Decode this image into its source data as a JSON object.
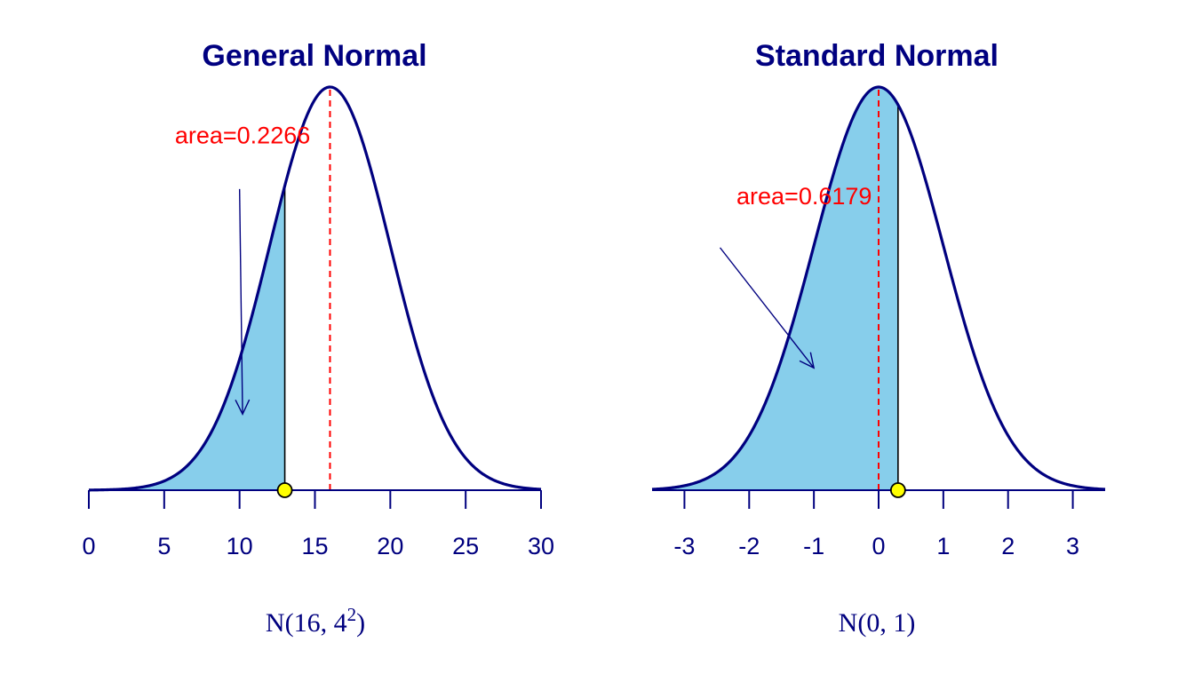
{
  "chart_data": [
    {
      "type": "area",
      "title": "General Normal",
      "distribution": {
        "mean": 16,
        "sd": 4
      },
      "xlim": [
        0,
        30
      ],
      "xticks": [
        0,
        5,
        10,
        15,
        20,
        25,
        30
      ],
      "xlabel": {
        "main": "N(16, 4",
        "sup": "2",
        "close": ")"
      },
      "shaded": {
        "from": 0,
        "to": 13,
        "area_label": "area=0.2266"
      },
      "cut_point": 13,
      "mean_line": 16,
      "arrow": {
        "from": [
          10.0,
          0.0745
        ],
        "to": [
          10.2,
          0.0188
        ]
      },
      "label_pos": [
        10.2,
        0.0858
      ]
    },
    {
      "type": "area",
      "title": "Standard Normal",
      "distribution": {
        "mean": 0,
        "sd": 1
      },
      "xlim": [
        -3.5,
        3.5
      ],
      "xticks": [
        -3,
        -2,
        -1,
        0,
        1,
        2,
        3
      ],
      "xlabel": {
        "main": "N(0, 1)",
        "sup": "",
        "close": ""
      },
      "shaded": {
        "from": -3.5,
        "to": 0.3,
        "area_label": "area=0.6179"
      },
      "cut_point": 0.3,
      "mean_line": 0,
      "arrow": {
        "from": [
          -2.45,
          0.24
        ],
        "to": [
          -1.0,
          0.121
        ]
      },
      "label_pos": [
        -1.15,
        0.283
      ]
    }
  ],
  "colors": {
    "curve": "#00007f",
    "fill": "#87ceeb",
    "mean_line": "#ff0000",
    "area_text": "#ff0000",
    "axis": "#00007f",
    "marker_fill": "#ffff00",
    "marker_stroke": "#000000"
  }
}
